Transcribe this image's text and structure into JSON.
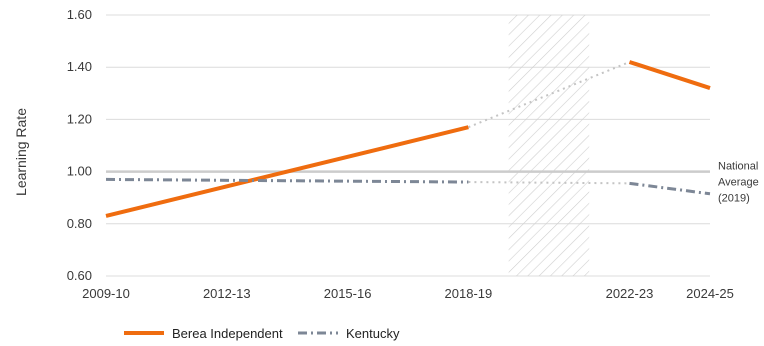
{
  "chart_data": {
    "type": "line",
    "ylabel": "Learning Rate",
    "ylim": [
      0.6,
      1.6
    ],
    "yticks": [
      "0.60",
      "0.80",
      "1.00",
      "1.20",
      "1.40",
      "1.60"
    ],
    "xlim": [
      2009,
      2024
    ],
    "xticks": [
      {
        "label": "2009-10",
        "x": 2009
      },
      {
        "label": "2012-13",
        "x": 2012
      },
      {
        "label": "2015-16",
        "x": 2015
      },
      {
        "label": "2018-19",
        "x": 2018
      },
      {
        "label": "2022-23",
        "x": 2022
      },
      {
        "label": "2024-25",
        "x": 2024
      }
    ],
    "grid": true,
    "shaded_region": {
      "from": 2019,
      "to": 2021
    },
    "reference_line": {
      "y": 1.0,
      "label": [
        "National",
        "Average",
        "(2019)"
      ]
    },
    "legend_position": "bottom-left",
    "series": [
      {
        "name": "Berea Independent",
        "color": "#ef6c0f",
        "style": "solid",
        "points": [
          [
            2009,
            0.83
          ],
          [
            2018,
            1.17
          ],
          [
            2022,
            1.42
          ],
          [
            2024,
            1.32
          ]
        ],
        "gap": {
          "from": 2018,
          "to": 2022
        }
      },
      {
        "name": "Kentucky",
        "color": "#7d8796",
        "style": "dashed",
        "points": [
          [
            2009,
            0.97
          ],
          [
            2018,
            0.96
          ],
          [
            2022,
            0.955
          ],
          [
            2024,
            0.915
          ]
        ],
        "gap": {
          "from": 2018,
          "to": 2022
        }
      }
    ]
  }
}
